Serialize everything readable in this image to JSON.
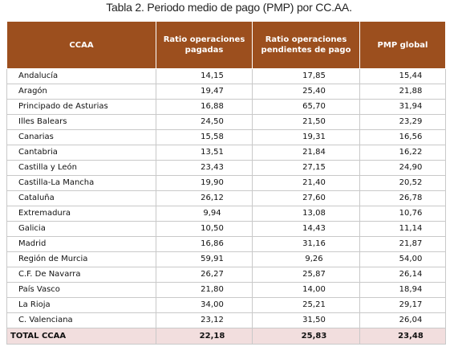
{
  "caption": "Tabla 2. Periodo medio de pago (PMP) por CC.AA.",
  "colors": {
    "header_bg": "#9c4f1e",
    "total_bg": "#f2dede"
  },
  "headers": [
    "CCAA",
    "Ratio operaciones pagadas",
    "Ratio operaciones pendientes de pago",
    "PMP global"
  ],
  "rows": [
    [
      "Andalucía",
      "14,15",
      "17,85",
      "15,44"
    ],
    [
      "Aragón",
      "19,47",
      "25,40",
      "21,88"
    ],
    [
      "Principado de Asturias",
      "16,88",
      "65,70",
      "31,94"
    ],
    [
      "Illes Balears",
      "24,50",
      "21,50",
      "23,29"
    ],
    [
      "Canarias",
      "15,58",
      "19,31",
      "16,56"
    ],
    [
      "Cantabria",
      "13,51",
      "21,84",
      "16,22"
    ],
    [
      "Castilla y León",
      "23,43",
      "27,15",
      "24,90"
    ],
    [
      "Castilla-La Mancha",
      "19,90",
      "21,40",
      "20,52"
    ],
    [
      "Cataluña",
      "26,12",
      "27,60",
      "26,78"
    ],
    [
      "Extremadura",
      "9,94",
      "13,08",
      "10,76"
    ],
    [
      "Galicia",
      "10,50",
      "14,43",
      "11,14"
    ],
    [
      "Madrid",
      "16,86",
      "31,16",
      "21,87"
    ],
    [
      "Región de Murcia",
      "59,91",
      "9,26",
      "54,00"
    ],
    [
      "C.F. De Navarra",
      "26,27",
      "25,87",
      "26,14"
    ],
    [
      "País Vasco",
      "21,80",
      "14,00",
      "18,94"
    ],
    [
      "La Rioja",
      "34,00",
      "25,21",
      "29,17"
    ],
    [
      "C. Valenciana",
      "23,12",
      "31,50",
      "26,04"
    ]
  ],
  "total": [
    "TOTAL CCAA",
    "22,18",
    "25,83",
    "23,48"
  ]
}
